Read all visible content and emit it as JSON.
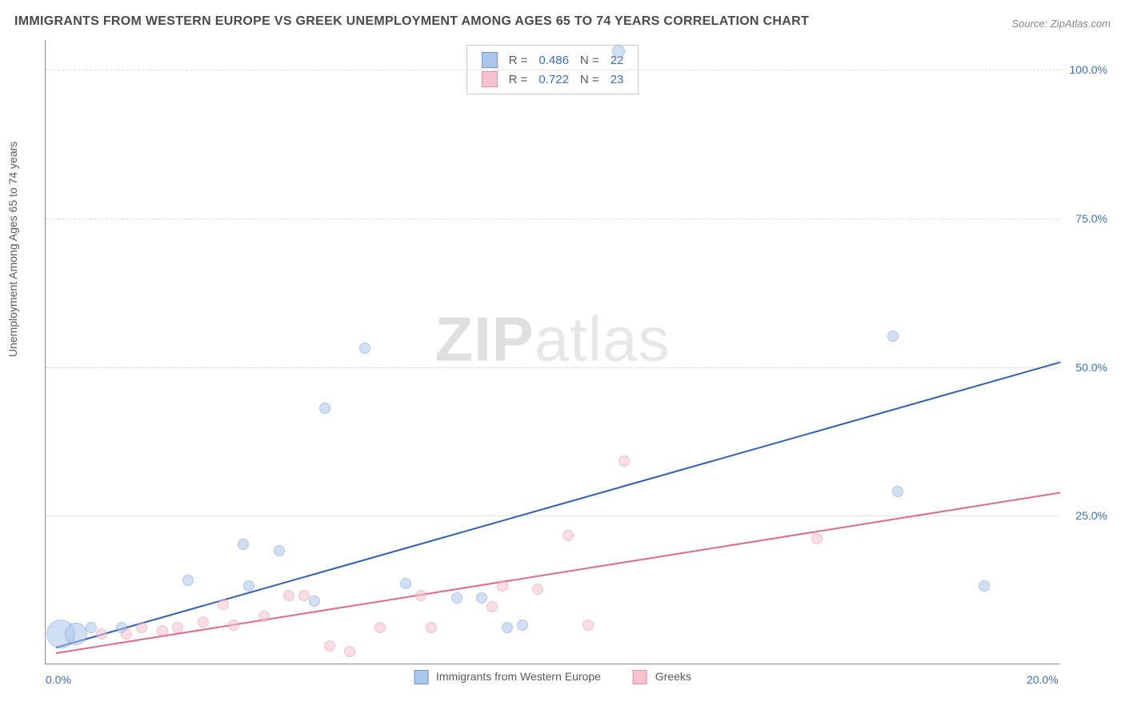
{
  "title": "IMMIGRANTS FROM WESTERN EUROPE VS GREEK UNEMPLOYMENT AMONG AGES 65 TO 74 YEARS CORRELATION CHART",
  "source": "Source: ZipAtlas.com",
  "watermark_a": "ZIP",
  "watermark_b": "atlas",
  "ylabel": "Unemployment Among Ages 65 to 74 years",
  "chart": {
    "type": "scatter",
    "xlim": [
      0,
      20
    ],
    "ylim": [
      0,
      105
    ],
    "xticks": [
      {
        "v": 0,
        "label": "0.0%"
      },
      {
        "v": 20,
        "label": "20.0%"
      }
    ],
    "yticks": [
      {
        "v": 25,
        "label": "25.0%"
      },
      {
        "v": 50,
        "label": "50.0%"
      },
      {
        "v": 75,
        "label": "75.0%"
      },
      {
        "v": 100,
        "label": "100.0%"
      }
    ],
    "background": "#ffffff",
    "grid_color": "#d8d8d8",
    "axis_color": "#888888",
    "tick_color": "#3b6fc9"
  },
  "series": [
    {
      "name": "Immigrants from Western Europe",
      "fill": "#aac6ea",
      "stroke": "#6a9bd8",
      "line_color": "#2e5fb8",
      "fill_opacity": 0.55,
      "R": "0.486",
      "N": "22",
      "trend": {
        "x1": 0.2,
        "y1": 3,
        "x2": 20,
        "y2": 51
      },
      "points": [
        {
          "x": 0.3,
          "y": 5,
          "r": 18
        },
        {
          "x": 0.6,
          "y": 5,
          "r": 14
        },
        {
          "x": 0.9,
          "y": 6,
          "r": 7
        },
        {
          "x": 1.5,
          "y": 6,
          "r": 7
        },
        {
          "x": 2.8,
          "y": 14,
          "r": 7
        },
        {
          "x": 3.9,
          "y": 20,
          "r": 7
        },
        {
          "x": 4.0,
          "y": 13,
          "r": 7
        },
        {
          "x": 4.6,
          "y": 19,
          "r": 7
        },
        {
          "x": 5.3,
          "y": 10.5,
          "r": 7
        },
        {
          "x": 5.5,
          "y": 43,
          "r": 7
        },
        {
          "x": 6.3,
          "y": 53,
          "r": 7
        },
        {
          "x": 7.1,
          "y": 13.5,
          "r": 7
        },
        {
          "x": 8.1,
          "y": 11,
          "r": 7
        },
        {
          "x": 8.6,
          "y": 11,
          "r": 7
        },
        {
          "x": 9.1,
          "y": 6,
          "r": 7
        },
        {
          "x": 9.4,
          "y": 6.5,
          "r": 7
        },
        {
          "x": 11.3,
          "y": 103,
          "r": 8
        },
        {
          "x": 16.7,
          "y": 55,
          "r": 7
        },
        {
          "x": 16.8,
          "y": 29,
          "r": 7
        },
        {
          "x": 18.5,
          "y": 13,
          "r": 7
        }
      ]
    },
    {
      "name": "Greeks",
      "fill": "#f5c2cd",
      "stroke": "#e88fa3",
      "line_color": "#e06a87",
      "fill_opacity": 0.55,
      "R": "0.722",
      "N": "23",
      "trend": {
        "x1": 0.2,
        "y1": 2,
        "x2": 20,
        "y2": 29
      },
      "points": [
        {
          "x": 1.1,
          "y": 5,
          "r": 7
        },
        {
          "x": 1.6,
          "y": 5,
          "r": 7
        },
        {
          "x": 1.9,
          "y": 6,
          "r": 7
        },
        {
          "x": 2.3,
          "y": 5.5,
          "r": 7
        },
        {
          "x": 2.6,
          "y": 6,
          "r": 7
        },
        {
          "x": 3.1,
          "y": 7,
          "r": 7
        },
        {
          "x": 3.5,
          "y": 10,
          "r": 7
        },
        {
          "x": 3.7,
          "y": 6.5,
          "r": 7
        },
        {
          "x": 4.3,
          "y": 8,
          "r": 7
        },
        {
          "x": 4.8,
          "y": 11.5,
          "r": 7
        },
        {
          "x": 5.1,
          "y": 11.5,
          "r": 7
        },
        {
          "x": 5.6,
          "y": 3,
          "r": 7
        },
        {
          "x": 6.0,
          "y": 2,
          "r": 7
        },
        {
          "x": 6.6,
          "y": 6,
          "r": 7
        },
        {
          "x": 7.4,
          "y": 11.5,
          "r": 7
        },
        {
          "x": 7.6,
          "y": 6,
          "r": 7
        },
        {
          "x": 8.8,
          "y": 9.5,
          "r": 7
        },
        {
          "x": 9.0,
          "y": 13,
          "r": 7
        },
        {
          "x": 9.7,
          "y": 12.5,
          "r": 7
        },
        {
          "x": 10.3,
          "y": 21.5,
          "r": 7
        },
        {
          "x": 10.7,
          "y": 6.5,
          "r": 7
        },
        {
          "x": 11.4,
          "y": 34,
          "r": 7
        },
        {
          "x": 15.2,
          "y": 21,
          "r": 7
        }
      ]
    }
  ],
  "legend": {
    "series1_label": "Immigrants from Western Europe",
    "series2_label": "Greeks"
  },
  "stats_box": {
    "R_label": "R =",
    "N_label": "N ="
  }
}
